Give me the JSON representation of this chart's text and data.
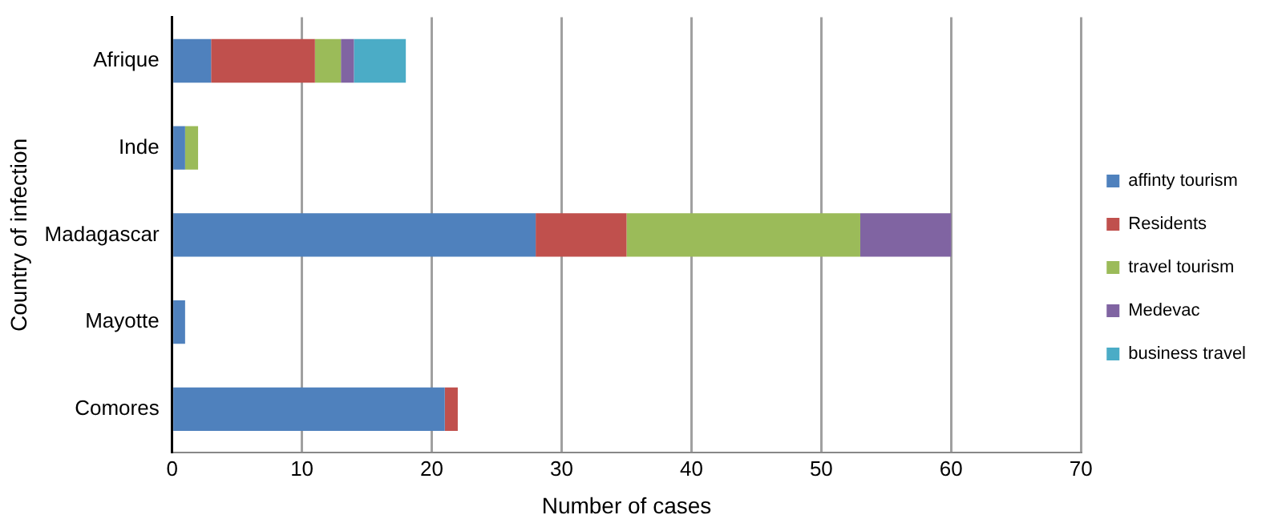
{
  "chart_data": {
    "type": "bar",
    "orientation": "horizontal",
    "stacked": true,
    "xlabel": "Number of cases",
    "ylabel": "Country of infection",
    "categories": [
      "Afrique",
      "Inde",
      "Madagascar",
      "Mayotte",
      "Comores"
    ],
    "series": [
      {
        "name": "affinty tourism",
        "color": "#4f81bd",
        "values": [
          3,
          1,
          28,
          1,
          21
        ]
      },
      {
        "name": "Residents",
        "color": "#c0504d",
        "values": [
          8,
          0,
          7,
          0,
          1
        ]
      },
      {
        "name": "travel tourism",
        "color": "#9bbb59",
        "values": [
          2,
          1,
          18,
          0,
          0
        ]
      },
      {
        "name": "Medevac",
        "color": "#8064a2",
        "values": [
          1,
          0,
          7,
          0,
          0
        ]
      },
      {
        "name": "business travel",
        "color": "#4bacc6",
        "values": [
          4,
          0,
          0,
          0,
          0
        ]
      }
    ],
    "xlim": [
      0,
      70
    ],
    "xticks": [
      0,
      10,
      20,
      30,
      40,
      50,
      60,
      70
    ],
    "grid": "x",
    "legend": "right"
  }
}
